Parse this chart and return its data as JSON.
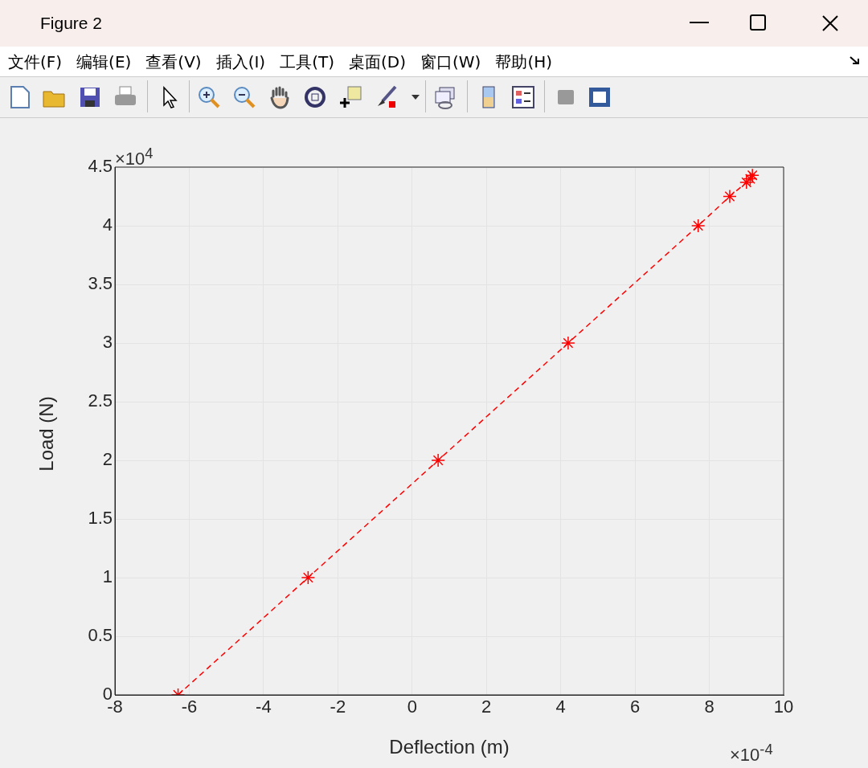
{
  "chart_data": {
    "type": "line",
    "title": "Figure 2",
    "xlabel": "Deflection (m)",
    "ylabel": "Load (N)",
    "annotations": [
      "文件(F)",
      "编辑(E)",
      "查看(V)",
      "插入(I)",
      "工具(T)",
      "桌面(D)",
      "窗口(W)",
      "帮助(H)",
      "×10$^{4}$",
      "×10$^{-4}$"
    ],
    "x": [
      -6.3,
      -2.8,
      0.7,
      4.2,
      7.7,
      8.55,
      9.0,
      9.1,
      9.16
    ],
    "series": [
      {
        "color": "#ff0000",
        "values": [
          0,
          1,
          2,
          3,
          4,
          4.25,
          4.37,
          4.4,
          4.43
        ]
      }
    ],
    "xlim": [
      -8,
      10
    ],
    "xticks": [
      -8,
      -6,
      -4,
      -2,
      0,
      2,
      4,
      6,
      8,
      10
    ],
    "ylim": [
      0,
      4.5
    ],
    "yticks": [
      0,
      0.5,
      1,
      1.5,
      2,
      2.5,
      3,
      3.5,
      4,
      4.5
    ],
    "grid": true,
    "legend": false,
    "marker": "cross",
    "line_style": "dashed"
  }
}
